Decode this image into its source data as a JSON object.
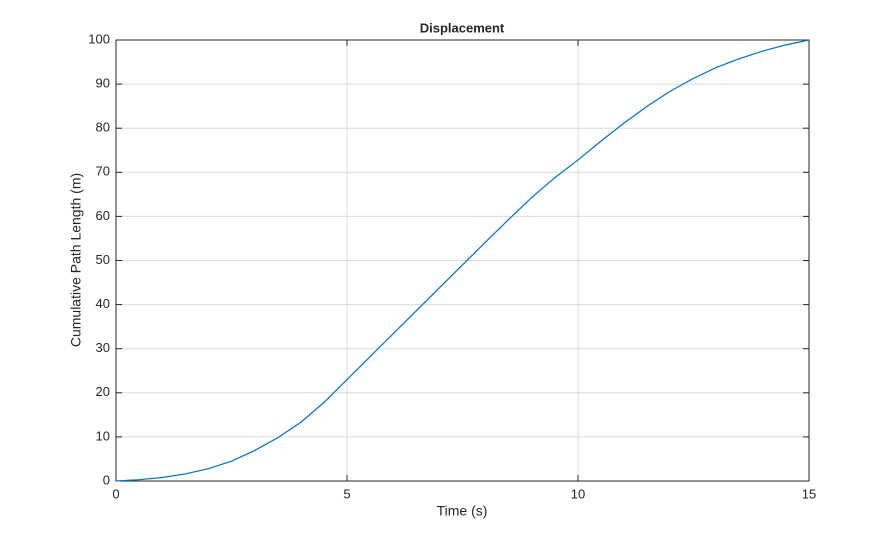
{
  "chart_data": {
    "type": "line",
    "title": "Displacement",
    "xlabel": "Time (s)",
    "ylabel": "Cumulative Path Length (m)",
    "x": [
      0,
      0.5,
      1,
      1.5,
      2,
      2.5,
      3,
      3.5,
      4,
      4.5,
      5,
      5.5,
      6,
      6.5,
      7,
      7.5,
      8,
      8.5,
      9,
      9.5,
      10,
      10.5,
      11,
      11.5,
      12,
      12.5,
      13,
      13.5,
      14,
      14.5,
      15
    ],
    "series": [
      {
        "color": "#0072bd",
        "values": [
          0,
          0.3,
          0.8,
          1.6,
          2.8,
          4.5,
          6.9,
          9.8,
          13.3,
          17.8,
          23,
          28.2,
          33.4,
          38.6,
          43.8,
          49,
          54.2,
          59.3,
          64.3,
          68.8,
          72.8,
          77.1,
          81.2,
          85,
          88.4,
          91.3,
          93.8,
          95.8,
          97.5,
          98.9,
          100
        ]
      }
    ],
    "xlim": [
      0,
      15
    ],
    "xticks": [
      0,
      5,
      10,
      15
    ],
    "ylim": [
      0,
      100
    ],
    "yticks": [
      0,
      10,
      20,
      30,
      40,
      50,
      60,
      70,
      80,
      90,
      100
    ],
    "grid": true
  }
}
